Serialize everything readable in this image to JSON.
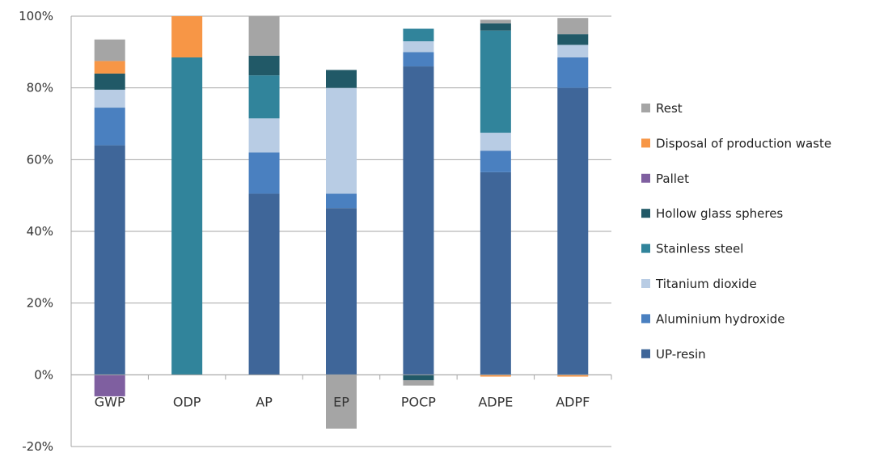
{
  "chart_data": {
    "type": "bar",
    "stacked": true,
    "categories": [
      "GWP",
      "ODP",
      "AP",
      "EP",
      "POCP",
      "ADPE",
      "ADPF"
    ],
    "ylim": [
      -20,
      100
    ],
    "yticks": [
      -20,
      0,
      20,
      40,
      60,
      80,
      100
    ],
    "ytick_format": "percent",
    "grid": true,
    "legend_position": "right",
    "series": [
      {
        "name": "UP-resin",
        "color": "#3f6699",
        "values": [
          64,
          0,
          50.5,
          46.5,
          86,
          56.5,
          80
        ]
      },
      {
        "name": "Aluminium hydroxide",
        "color": "#4a80c0",
        "values": [
          10.5,
          0,
          11.5,
          4,
          4,
          6,
          8.5
        ]
      },
      {
        "name": "Titanium dioxide",
        "color": "#b8cce4",
        "values": [
          5,
          0,
          9.5,
          29.5,
          3,
          5,
          3.5
        ]
      },
      {
        "name": "Stainless steel",
        "color": "#31849b",
        "values": [
          0,
          88.5,
          12,
          0,
          3.5,
          28.5,
          0
        ]
      },
      {
        "name": "Hollow glass spheres",
        "color": "#215967",
        "values": [
          4.5,
          0,
          5.5,
          5,
          -1.5,
          2,
          3
        ]
      },
      {
        "name": "Pallet",
        "color": "#7f5fa0",
        "values": [
          -6,
          0,
          0,
          0,
          0,
          0,
          0
        ]
      },
      {
        "name": "Disposal of production waste",
        "color": "#f79646",
        "values": [
          3.5,
          11.5,
          0,
          0,
          0,
          -0.5,
          -0.5
        ]
      },
      {
        "name": "Rest",
        "color": "#a5a5a5",
        "values": [
          6,
          0,
          11,
          -15,
          -1.5,
          1,
          4.5
        ]
      }
    ]
  }
}
